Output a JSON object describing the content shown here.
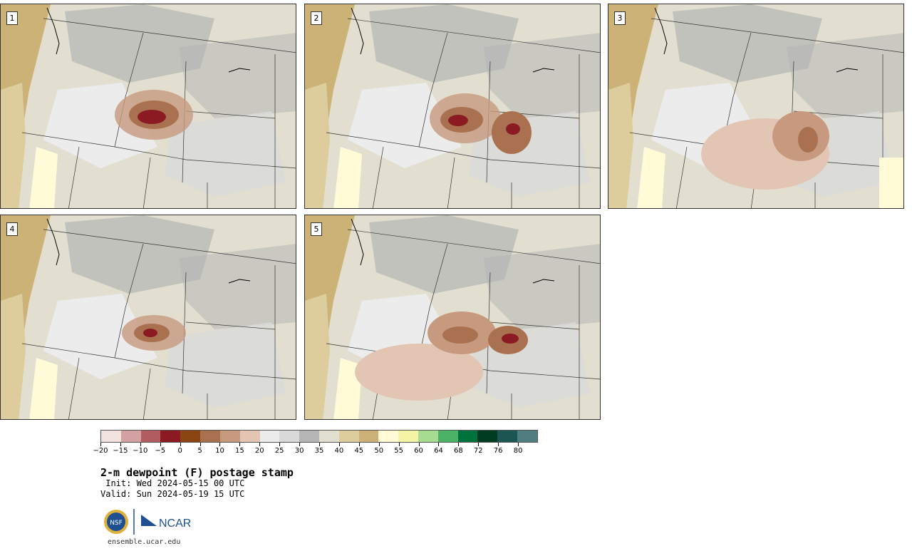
{
  "panels": [
    {
      "label": "1"
    },
    {
      "label": "2"
    },
    {
      "label": "3"
    },
    {
      "label": "4"
    },
    {
      "label": "5"
    }
  ],
  "legend": {
    "colors": [
      "#f2e3e1",
      "#d4a1a3",
      "#b15d61",
      "#8b1a22",
      "#8b4513",
      "#a9714f",
      "#c79a80",
      "#e3c5b3",
      "#ececec",
      "#d9d9d9",
      "#b5b5b5",
      "#e1dfd0",
      "#ddcc9c",
      "#cdb277",
      "#fefbd6",
      "#f6f5a5",
      "#a6dd91",
      "#4cb366",
      "#00733c",
      "#003c22",
      "#1c5653",
      "#4f7d80"
    ],
    "tick_labels": [
      "−20",
      "−15",
      "−10",
      "−5",
      "0",
      "5",
      "10",
      "15",
      "20",
      "25",
      "30",
      "35",
      "40",
      "45",
      "50",
      "55",
      "60",
      "64",
      "68",
      "72",
      "76",
      "80"
    ]
  },
  "title": "2-m dewpoint (F) postage stamp",
  "init": " Init: Wed 2024-05-15 00 UTC",
  "valid": "Valid: Sun 2024-05-19 15 UTC",
  "logos": {
    "nsf": "NSF",
    "ncar": "NCAR"
  },
  "footer": "ensemble.ucar.edu"
}
